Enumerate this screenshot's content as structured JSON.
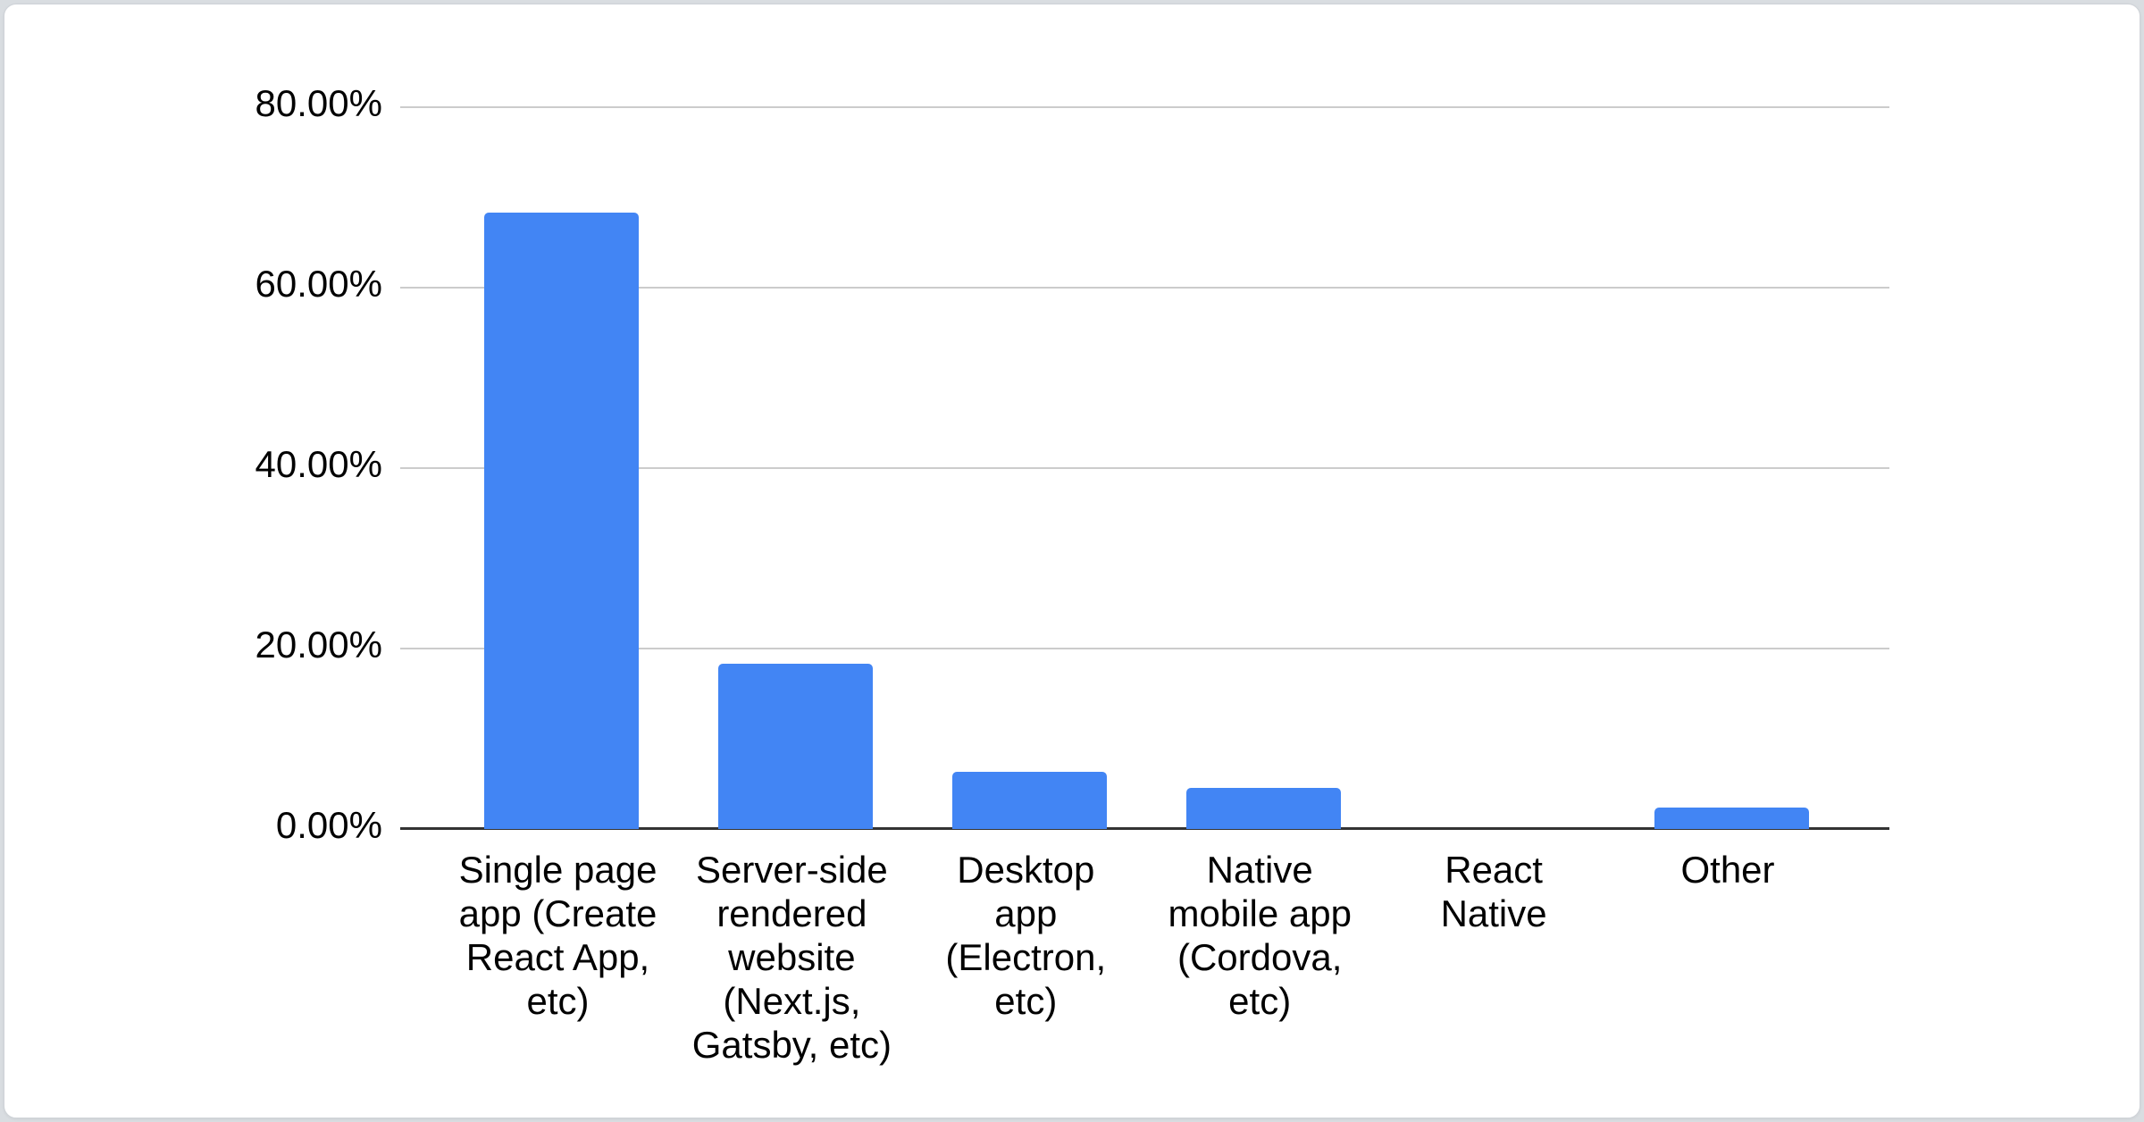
{
  "chart_data": {
    "type": "bar",
    "title": "",
    "xlabel": "",
    "ylabel": "",
    "categories": [
      "Single page app (Create React App, etc)",
      "Server-side rendered website (Next.js, Gatsby, etc)",
      "Desktop app (Electron, etc)",
      "Native mobile app (Cordova, etc)",
      "React Native",
      "Other"
    ],
    "category_lines": [
      [
        "Single page",
        "app (Create",
        "React App,",
        "etc)"
      ],
      [
        "Server-side",
        "rendered",
        "website",
        "(Next.js,",
        "Gatsby, etc)"
      ],
      [
        "Desktop",
        "app",
        "(Electron,",
        "etc)"
      ],
      [
        "Native",
        "mobile app",
        "(Cordova,",
        "etc)"
      ],
      [
        "React",
        "Native"
      ],
      [
        "Other"
      ]
    ],
    "values": [
      68.3,
      18.3,
      6.3,
      4.6,
      0,
      2.4
    ],
    "unit": "%",
    "ylim": [
      0,
      80
    ],
    "ytick_step": 20,
    "ytick_labels": [
      "80.00%",
      "60.00%",
      "40.00%",
      "20.00%",
      "0.00%"
    ],
    "grid": true,
    "legend": "none",
    "colors": {
      "bar": "#4285f4",
      "gridline": "#cccccc",
      "baseline": "#333333",
      "label_text": "#000000",
      "card_background": "#ffffff",
      "page_background": "#d9dde1"
    }
  }
}
